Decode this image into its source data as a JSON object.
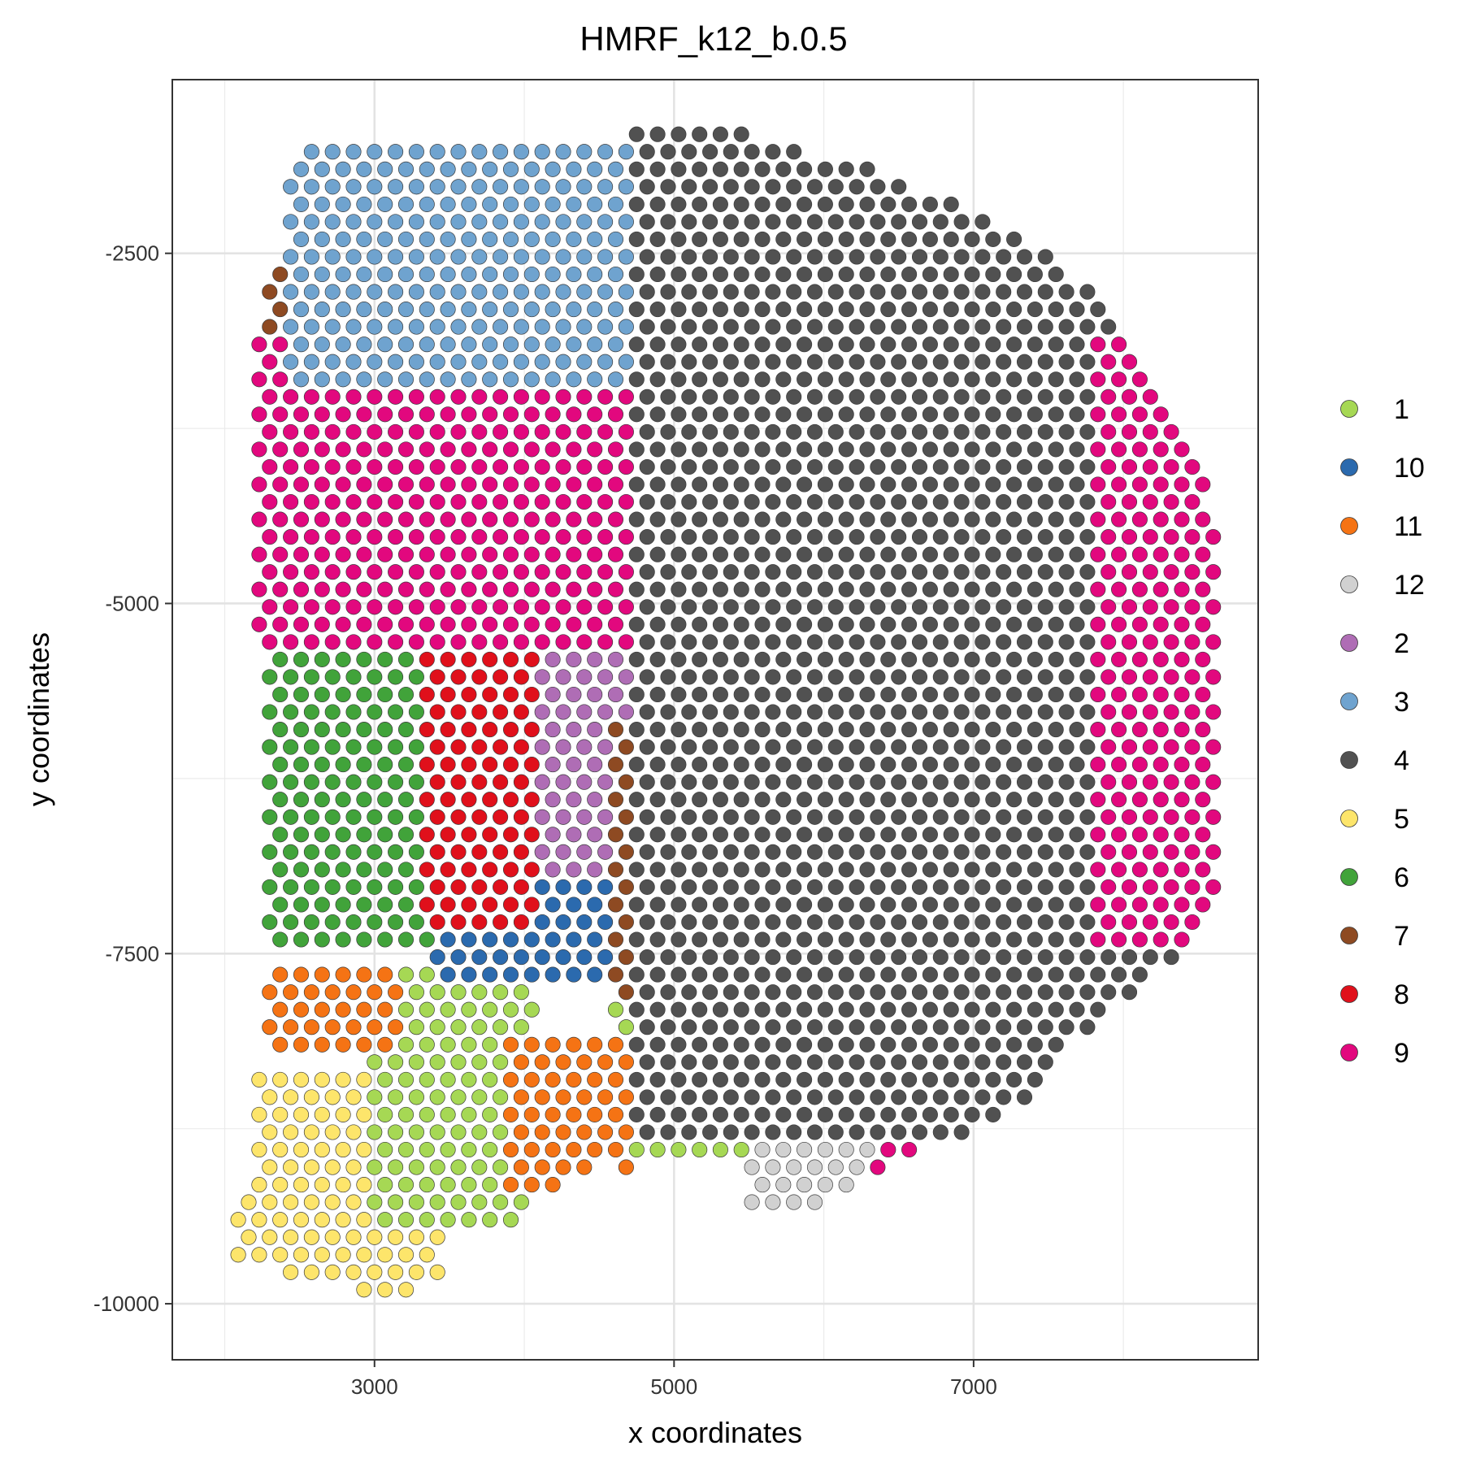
{
  "chart_data": {
    "type": "scatter",
    "title": "HMRF_k12_b.0.5",
    "xlabel": "x coordinates",
    "ylabel": "y coordinates",
    "xlim": [
      1650,
      8900
    ],
    "ylim": [
      -10400,
      -1260
    ],
    "x_ticks": [
      {
        "value": 3000,
        "label": "3000"
      },
      {
        "value": 5000,
        "label": "5000"
      },
      {
        "value": 7000,
        "label": "7000"
      }
    ],
    "y_ticks": [
      {
        "value": -2500,
        "label": "-2500"
      },
      {
        "value": -5000,
        "label": "-5000"
      },
      {
        "value": -7500,
        "label": "-7500"
      },
      {
        "value": -10000,
        "label": "-10000"
      }
    ],
    "grid": true,
    "legend_position": "right",
    "legend": [
      {
        "label": "1",
        "color": "#A6D854"
      },
      {
        "label": "10",
        "color": "#2B6AAE"
      },
      {
        "label": "11",
        "color": "#F57314"
      },
      {
        "label": "12",
        "color": "#D1D1D1"
      },
      {
        "label": "2",
        "color": "#AF6DB5"
      },
      {
        "label": "3",
        "color": "#6FA3CF"
      },
      {
        "label": "4",
        "color": "#515151"
      },
      {
        "label": "5",
        "color": "#FDE56B"
      },
      {
        "label": "6",
        "color": "#41A33A"
      },
      {
        "label": "7",
        "color": "#8E4A22"
      },
      {
        "label": "8",
        "color": "#E0101B"
      },
      {
        "label": "9",
        "color": "#E2087E"
      }
    ],
    "grid_spacing": {
      "dx": 140,
      "dy": 125
    },
    "regions": [
      {
        "label": "5",
        "x_min": 1950,
        "x_max": 3450,
        "y_min": -10050,
        "y_max": -8300
      },
      {
        "label": "1",
        "x_min": 3000,
        "x_max": 4100,
        "y_min": -9500,
        "y_max": -7650
      },
      {
        "label": "1",
        "x_min": 4600,
        "x_max": 5500,
        "y_min": -9000,
        "y_max": -7400
      },
      {
        "label": "11",
        "x_min": 2300,
        "x_max": 3200,
        "y_min": -8200,
        "y_max": -7650
      },
      {
        "label": "11",
        "x_min": 3900,
        "x_max": 4700,
        "y_min": -9200,
        "y_max": -8100
      },
      {
        "label": "11",
        "x_min": 5300,
        "x_max": 6300,
        "y_min": -7900,
        "y_max": -6500
      },
      {
        "label": "11",
        "x_min": 2400,
        "x_max": 3400,
        "y_min": -5400,
        "y_max": -4400
      },
      {
        "label": "6",
        "x_min": 2300,
        "x_max": 3500,
        "y_min": -7400,
        "y_max": -5300
      },
      {
        "label": "10",
        "x_min": 3400,
        "x_max": 5000,
        "y_min": -7700,
        "y_max": -6500
      },
      {
        "label": "10",
        "x_min": 4900,
        "x_max": 5700,
        "y_min": -7200,
        "y_max": -5500
      },
      {
        "label": "2",
        "x_min": 3900,
        "x_max": 4900,
        "y_min": -6900,
        "y_max": -4500
      },
      {
        "label": "8",
        "x_min": 3300,
        "x_max": 4100,
        "y_min": -7300,
        "y_max": -4600
      },
      {
        "label": "7",
        "x_min": 4600,
        "x_max": 6500,
        "y_min": -7800,
        "y_max": -5800
      },
      {
        "label": "7",
        "x_min": 5600,
        "x_max": 6800,
        "y_min": -6500,
        "y_max": -4000
      },
      {
        "label": "7",
        "x_min": 2200,
        "x_max": 5400,
        "y_min": -4200,
        "y_max": -2600
      },
      {
        "label": "12",
        "x_min": 5500,
        "x_max": 7600,
        "y_min": -9500,
        "y_max": -5700
      },
      {
        "label": "9",
        "x_min": 2200,
        "x_max": 6200,
        "y_min": -5300,
        "y_max": -3100
      },
      {
        "label": "9",
        "x_min": 6300,
        "x_max": 7600,
        "y_min": -9300,
        "y_max": -7600
      },
      {
        "label": "3",
        "x_min": 2400,
        "x_max": 7600,
        "y_min": -3500,
        "y_max": -1700
      },
      {
        "label": "3",
        "x_min": 6000,
        "x_max": 7500,
        "y_min": -5900,
        "y_max": -3000
      },
      {
        "label": "4",
        "x_min": 4700,
        "x_max": 8600,
        "y_min": -8800,
        "y_max": -1600
      },
      {
        "label": "9",
        "x_min": 7800,
        "x_max": 8700,
        "y_min": -7500,
        "y_max": -3100
      }
    ]
  }
}
